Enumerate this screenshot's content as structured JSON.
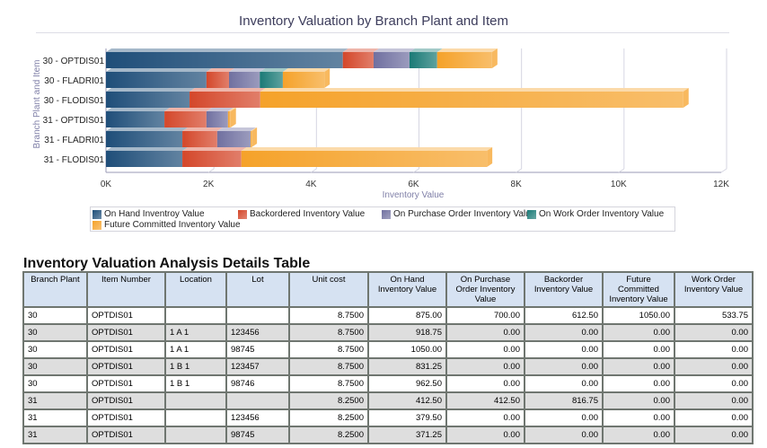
{
  "chart_data": {
    "type": "bar",
    "orientation": "horizontal",
    "stacked": true,
    "title": "Inventory Valuation by Branch Plant and Item",
    "xlabel": "Inventory Value",
    "ylabel": "Branch Plant and Item",
    "xlim": [
      0,
      12000
    ],
    "x_ticks": [
      "0K",
      "2K",
      "4K",
      "6K",
      "8K",
      "10K",
      "12K"
    ],
    "x_tick_values": [
      0,
      2000,
      4000,
      6000,
      8000,
      10000,
      12000
    ],
    "grid": true,
    "legend_position": "bottom",
    "categories": [
      "30 - OPTDIS01",
      "30 - FLADRI01",
      "30 - FLODIS01",
      "31 - OPTDIS01",
      "31 - FLADRI01",
      "31 - FLODIS01"
    ],
    "series": [
      {
        "name": "On Hand Inventroy Value",
        "color": "#1f4e79",
        "values": [
          4620,
          1960,
          1630,
          1140,
          1490,
          1490
        ]
      },
      {
        "name": "Backordered Inventory Value",
        "color": "#d4472a",
        "values": [
          600,
          440,
          1380,
          820,
          680,
          1150
        ]
      },
      {
        "name": "On Purchase Order Inventory Value",
        "color": "#7070a0",
        "values": [
          700,
          600,
          0,
          420,
          650,
          0
        ]
      },
      {
        "name": "On Work Order Inventory Value",
        "color": "#1a7a76",
        "values": [
          540,
          450,
          0,
          0,
          0,
          0
        ]
      },
      {
        "name": "Future Committed Inventory Value",
        "color": "#f5a22a",
        "values": [
          1070,
          810,
          8250,
          50,
          20,
          4790
        ]
      }
    ]
  },
  "table": {
    "title": "Inventory Valuation Analysis Details Table",
    "columns": [
      "Branch Plant",
      "Item Number",
      "Location",
      "Lot",
      "Unit cost",
      "On Hand Inventory Value",
      "On Purchase Order Inventory Value",
      "Backorder Inventory Value",
      "Future Committed Inventory Value",
      "Work Order Inventory Value"
    ],
    "rows": [
      [
        "30",
        "OPTDIS01",
        "",
        "",
        "8.7500",
        "875.00",
        "700.00",
        "612.50",
        "1050.00",
        "533.75"
      ],
      [
        "30",
        "OPTDIS01",
        "1 A 1",
        "123456",
        "8.7500",
        "918.75",
        "0.00",
        "0.00",
        "0.00",
        "0.00"
      ],
      [
        "30",
        "OPTDIS01",
        "1 A 1",
        "98745",
        "8.7500",
        "1050.00",
        "0.00",
        "0.00",
        "0.00",
        "0.00"
      ],
      [
        "30",
        "OPTDIS01",
        "1 B 1",
        "123457",
        "8.7500",
        "831.25",
        "0.00",
        "0.00",
        "0.00",
        "0.00"
      ],
      [
        "30",
        "OPTDIS01",
        "1 B 1",
        "98746",
        "8.7500",
        "962.50",
        "0.00",
        "0.00",
        "0.00",
        "0.00"
      ],
      [
        "31",
        "OPTDIS01",
        "",
        "",
        "8.2500",
        "412.50",
        "412.50",
        "816.75",
        "0.00",
        "0.00"
      ],
      [
        "31",
        "OPTDIS01",
        "",
        "123456",
        "8.2500",
        "379.50",
        "0.00",
        "0.00",
        "0.00",
        "0.00"
      ],
      [
        "31",
        "OPTDIS01",
        "",
        "98745",
        "8.2500",
        "371.25",
        "0.00",
        "0.00",
        "0.00",
        "0.00"
      ]
    ]
  }
}
